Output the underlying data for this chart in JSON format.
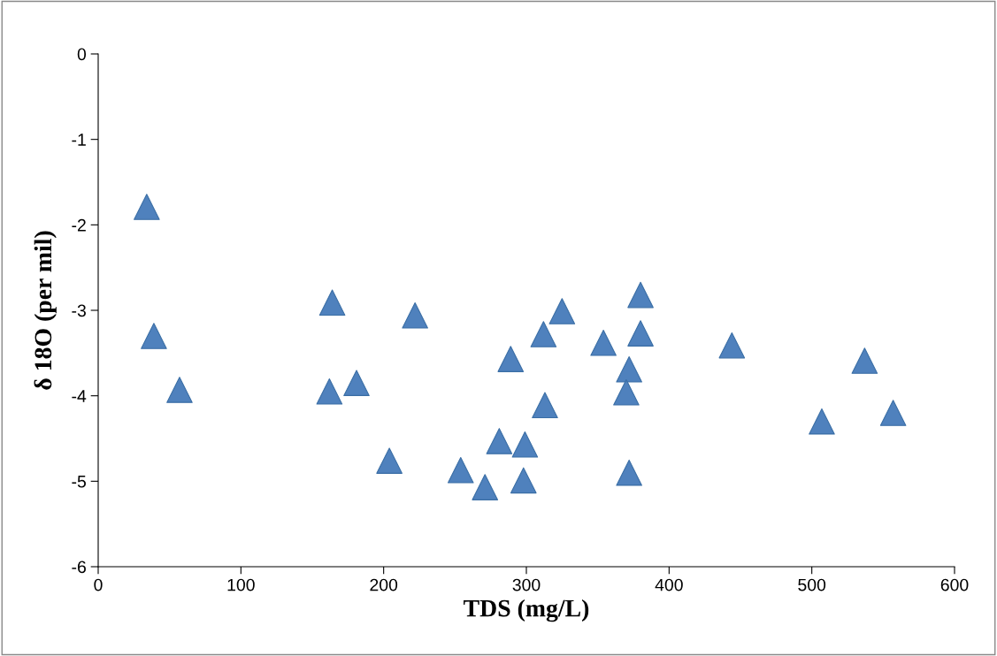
{
  "chart_data": {
    "type": "scatter",
    "xlabel": "TDS (mg/L)",
    "ylabel": "δ 18O (per mil)",
    "x": [
      34,
      39,
      57,
      164,
      162,
      181,
      222,
      204,
      254,
      271,
      281,
      299,
      298,
      289,
      312,
      313,
      325,
      354,
      380,
      380,
      372,
      370,
      372,
      444,
      537,
      507,
      557
    ],
    "series": [
      {
        "color": "#4f81bd",
        "values": [
          -1.79,
          -3.3,
          -3.93,
          -2.91,
          -3.95,
          -3.85,
          -3.06,
          -4.76,
          -4.87,
          -5.07,
          -4.53,
          -4.57,
          -4.99,
          -3.57,
          -3.28,
          -4.11,
          -3.01,
          -3.38,
          -2.82,
          -3.27,
          -3.69,
          -3.96,
          -4.9,
          -3.41,
          -3.59,
          -4.3,
          -4.2
        ]
      }
    ],
    "xlim": [
      0,
      600
    ],
    "xticks": [
      0,
      100,
      200,
      300,
      400,
      500,
      600
    ],
    "ylim": [
      -6,
      0
    ],
    "yticks": [
      -6,
      -5,
      -4,
      -3,
      -2,
      -1,
      0
    ],
    "marker": "triangle",
    "grid": false,
    "legend": false
  }
}
